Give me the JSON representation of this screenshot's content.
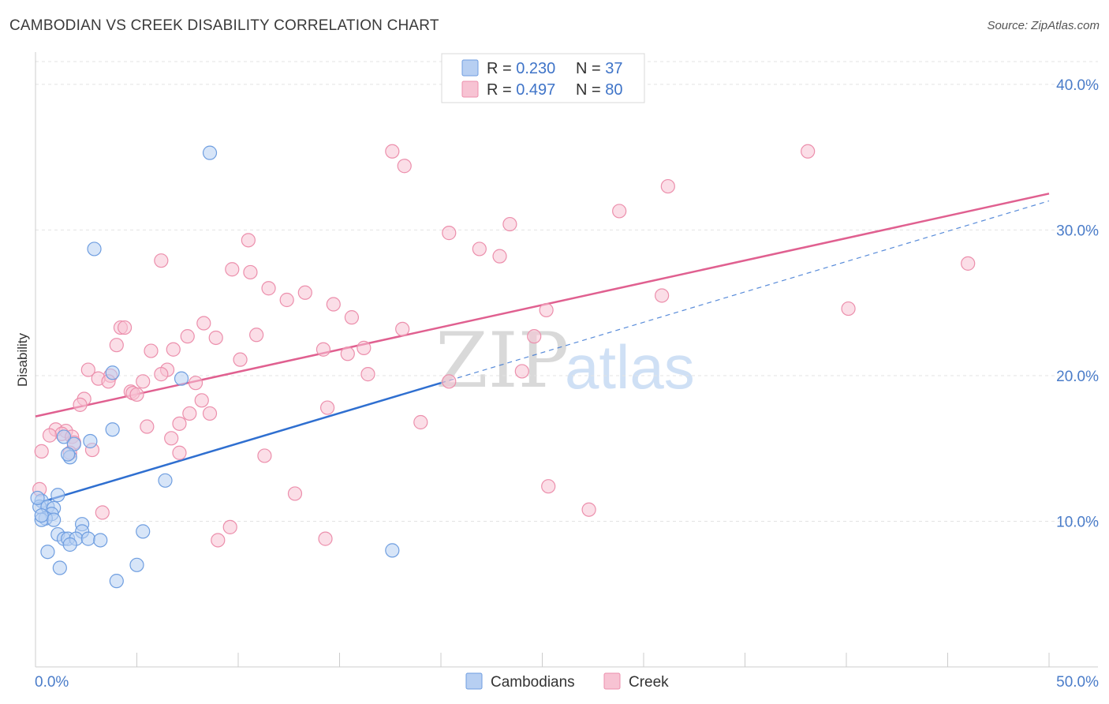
{
  "title": "CAMBODIAN VS CREEK DISABILITY CORRELATION CHART",
  "source": "Source: ZipAtlas.com",
  "watermark": {
    "part1": "ZIP",
    "part2": "atlas"
  },
  "colors": {
    "cambodians_fill": "#b7cff2",
    "cambodians_stroke": "#6f9ee0",
    "cambodians_line": "#2f6fd0",
    "creek_fill": "#f7c3d3",
    "creek_stroke": "#ec8fac",
    "creek_line": "#e06090"
  },
  "legend": {
    "row1": {
      "r_label": "R = ",
      "r_value": "0.230",
      "n_label": "N = ",
      "n_value": "37"
    },
    "row2": {
      "r_label": "R = ",
      "r_value": "0.497",
      "n_label": "N = ",
      "n_value": "80"
    }
  },
  "chart_data": {
    "type": "scatter",
    "title": "CAMBODIAN VS CREEK DISABILITY CORRELATION CHART",
    "xlabel": "",
    "ylabel": "Disability",
    "xlim": [
      0,
      50
    ],
    "ylim": [
      0,
      42
    ],
    "x_tick_labels": [
      "0.0%",
      "50.0%"
    ],
    "y_ticks": [
      10,
      20,
      30,
      40
    ],
    "y_tick_labels": [
      "10.0%",
      "20.0%",
      "30.0%",
      "40.0%"
    ],
    "grid": true,
    "legend_position": "top-center",
    "series": [
      {
        "name": "Cambodians",
        "points": [
          [
            8.6,
            35.3
          ],
          [
            2.9,
            28.7
          ],
          [
            3.8,
            20.2
          ],
          [
            7.2,
            19.8
          ],
          [
            3.8,
            16.3
          ],
          [
            2.7,
            15.5
          ],
          [
            1.4,
            15.8
          ],
          [
            1.9,
            15.3
          ],
          [
            1.7,
            14.4
          ],
          [
            1.6,
            14.6
          ],
          [
            6.4,
            12.8
          ],
          [
            1.1,
            11.8
          ],
          [
            0.3,
            11.4
          ],
          [
            0.2,
            11.0
          ],
          [
            0.6,
            11.0
          ],
          [
            0.9,
            10.9
          ],
          [
            0.8,
            10.5
          ],
          [
            0.5,
            10.2
          ],
          [
            0.3,
            10.1
          ],
          [
            0.9,
            10.1
          ],
          [
            2.3,
            9.8
          ],
          [
            2.3,
            9.3
          ],
          [
            5.3,
            9.3
          ],
          [
            1.1,
            9.1
          ],
          [
            1.4,
            8.8
          ],
          [
            1.6,
            8.8
          ],
          [
            2.0,
            8.8
          ],
          [
            2.6,
            8.8
          ],
          [
            3.2,
            8.7
          ],
          [
            1.7,
            8.4
          ],
          [
            0.6,
            7.9
          ],
          [
            17.6,
            8.0
          ],
          [
            1.2,
            6.8
          ],
          [
            5.0,
            7.0
          ],
          [
            4.0,
            5.9
          ],
          [
            0.3,
            10.4
          ],
          [
            0.1,
            11.6
          ]
        ],
        "trend": {
          "x": [
            0,
            20
          ],
          "y": [
            11.2,
            19.5
          ]
        },
        "trend_extension": {
          "x": [
            20,
            50
          ],
          "y": [
            19.5,
            32.0
          ]
        }
      },
      {
        "name": "Creek",
        "points": [
          [
            17.6,
            35.4
          ],
          [
            38.1,
            35.4
          ],
          [
            18.2,
            34.4
          ],
          [
            31.2,
            33.0
          ],
          [
            28.8,
            31.3
          ],
          [
            23.4,
            30.4
          ],
          [
            20.4,
            29.8
          ],
          [
            10.5,
            29.3
          ],
          [
            21.9,
            28.7
          ],
          [
            22.9,
            28.2
          ],
          [
            6.2,
            27.9
          ],
          [
            46.0,
            27.7
          ],
          [
            9.7,
            27.3
          ],
          [
            10.6,
            27.1
          ],
          [
            11.5,
            26.0
          ],
          [
            13.3,
            25.7
          ],
          [
            30.9,
            25.5
          ],
          [
            12.4,
            25.2
          ],
          [
            14.7,
            24.9
          ],
          [
            40.1,
            24.6
          ],
          [
            25.2,
            24.5
          ],
          [
            15.6,
            24.0
          ],
          [
            8.3,
            23.6
          ],
          [
            4.2,
            23.3
          ],
          [
            4.4,
            23.3
          ],
          [
            18.1,
            23.2
          ],
          [
            10.9,
            22.8
          ],
          [
            7.5,
            22.7
          ],
          [
            8.9,
            22.6
          ],
          [
            24.6,
            22.7
          ],
          [
            4.0,
            22.1
          ],
          [
            16.2,
            21.9
          ],
          [
            14.2,
            21.8
          ],
          [
            5.7,
            21.7
          ],
          [
            6.8,
            21.8
          ],
          [
            15.4,
            21.5
          ],
          [
            10.1,
            21.1
          ],
          [
            2.6,
            20.4
          ],
          [
            6.5,
            20.4
          ],
          [
            16.4,
            20.1
          ],
          [
            24.0,
            20.3
          ],
          [
            6.2,
            20.1
          ],
          [
            3.7,
            20.0
          ],
          [
            3.1,
            19.8
          ],
          [
            3.6,
            19.6
          ],
          [
            20.4,
            19.6
          ],
          [
            5.3,
            19.6
          ],
          [
            7.9,
            19.5
          ],
          [
            4.7,
            18.9
          ],
          [
            4.8,
            18.8
          ],
          [
            5.0,
            18.7
          ],
          [
            2.4,
            18.4
          ],
          [
            8.2,
            18.3
          ],
          [
            2.2,
            18.0
          ],
          [
            14.4,
            17.8
          ],
          [
            7.6,
            17.4
          ],
          [
            8.6,
            17.4
          ],
          [
            19.0,
            16.8
          ],
          [
            5.5,
            16.5
          ],
          [
            7.1,
            16.7
          ],
          [
            1.0,
            16.3
          ],
          [
            1.5,
            16.2
          ],
          [
            1.3,
            16.0
          ],
          [
            0.7,
            15.9
          ],
          [
            1.8,
            15.8
          ],
          [
            6.7,
            15.7
          ],
          [
            1.9,
            15.4
          ],
          [
            2.8,
            14.9
          ],
          [
            0.3,
            14.8
          ],
          [
            1.7,
            14.7
          ],
          [
            7.1,
            14.7
          ],
          [
            11.3,
            14.5
          ],
          [
            25.3,
            12.4
          ],
          [
            12.8,
            11.9
          ],
          [
            27.3,
            10.8
          ],
          [
            3.3,
            10.6
          ],
          [
            9.6,
            9.6
          ],
          [
            9.0,
            8.7
          ],
          [
            14.3,
            8.8
          ],
          [
            0.2,
            12.2
          ]
        ],
        "trend": {
          "x": [
            0,
            50
          ],
          "y": [
            17.2,
            32.5
          ]
        }
      }
    ]
  }
}
